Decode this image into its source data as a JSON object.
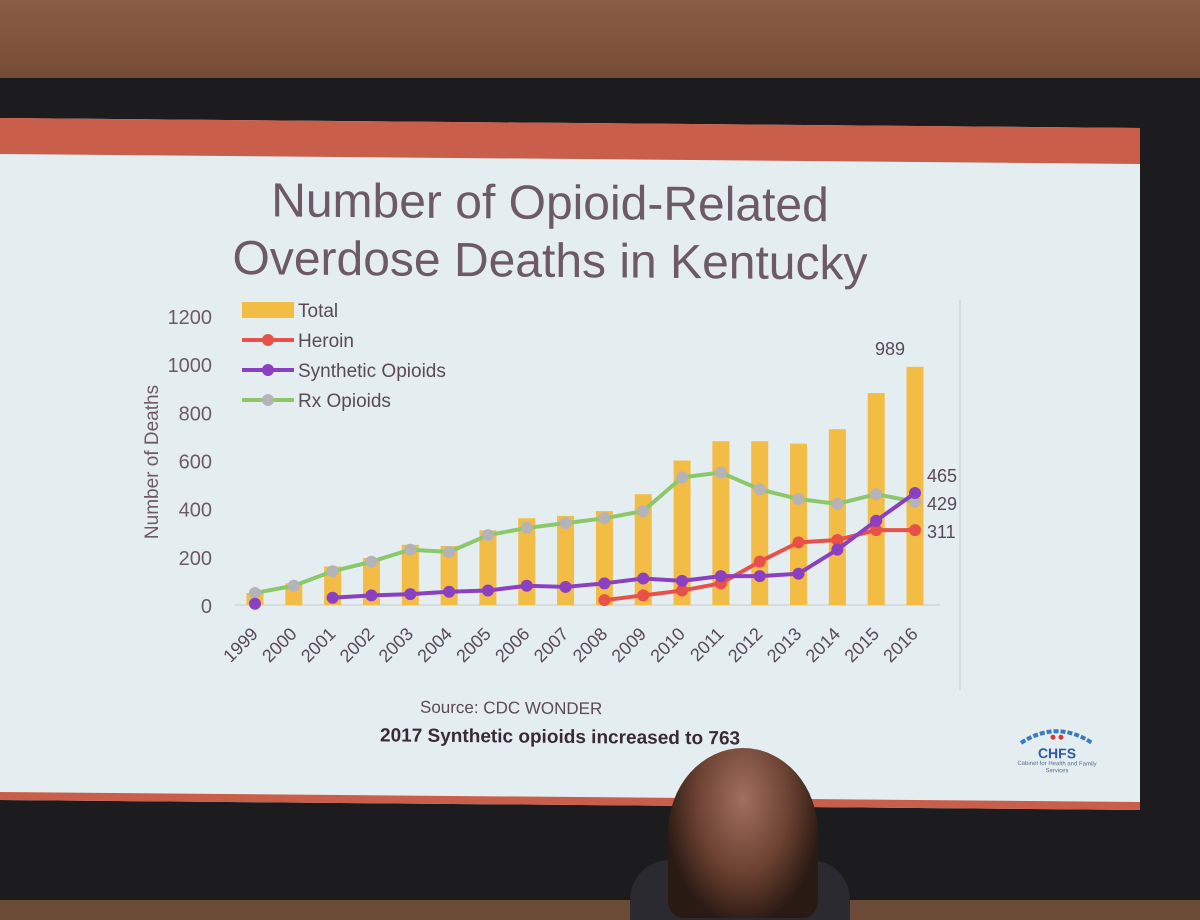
{
  "slide": {
    "title_line1": "Number of Opioid-Related",
    "title_line2": "Overdose Deaths in Kentucky",
    "source": "Source: CDC WONDER",
    "note": "2017  Synthetic opioids increased to 763",
    "logo_text": "CHFS",
    "logo_subtitle": "Cabinet for Health and Family Services"
  },
  "colors": {
    "total": "#f2bc45",
    "heroin": "#e8504a",
    "synthetic": "#8a40c0",
    "rx_line": "#8cc86a",
    "rx_marker": "#b4b4b8",
    "axis_text": "#6e5a66"
  },
  "chart_data": {
    "type": "bar",
    "title": "Number of Opioid-Related Overdose Deaths in Kentucky",
    "xlabel": "",
    "ylabel": "Number of Deaths",
    "ylim": [
      0,
      1200
    ],
    "yticks": [
      0,
      200,
      400,
      600,
      800,
      1000,
      1200
    ],
    "legend_position": "top-left",
    "categories": [
      "1999",
      "2000",
      "2001",
      "2002",
      "2003",
      "2004",
      "2005",
      "2006",
      "2007",
      "2008",
      "2009",
      "2010",
      "2011",
      "2012",
      "2013",
      "2014",
      "2015",
      "2016"
    ],
    "series": [
      {
        "name": "Total",
        "kind": "bar",
        "values": [
          50,
          90,
          160,
          195,
          250,
          245,
          310,
          360,
          370,
          390,
          460,
          600,
          680,
          680,
          670,
          730,
          880,
          989
        ]
      },
      {
        "name": "Heroin",
        "kind": "line",
        "values": [
          null,
          null,
          null,
          null,
          null,
          null,
          null,
          null,
          null,
          20,
          40,
          60,
          90,
          180,
          260,
          270,
          311,
          311
        ]
      },
      {
        "name": "Synthetic Opioids",
        "kind": "line",
        "values": [
          5,
          null,
          30,
          40,
          45,
          55,
          60,
          80,
          75,
          90,
          110,
          100,
          120,
          120,
          130,
          230,
          350,
          465
        ]
      },
      {
        "name": "Rx Opioids",
        "kind": "line",
        "values": [
          50,
          80,
          140,
          180,
          230,
          220,
          290,
          320,
          340,
          360,
          390,
          530,
          550,
          480,
          440,
          420,
          460,
          429
        ]
      }
    ],
    "labels": [
      {
        "text": "989",
        "series": "Total",
        "category": "2016"
      },
      {
        "text": "465",
        "series": "Synthetic Opioids",
        "category": "2016"
      },
      {
        "text": "429",
        "series": "Rx Opioids",
        "category": "2016"
      },
      {
        "text": "311",
        "series": "Heroin",
        "category": "2016"
      }
    ]
  }
}
